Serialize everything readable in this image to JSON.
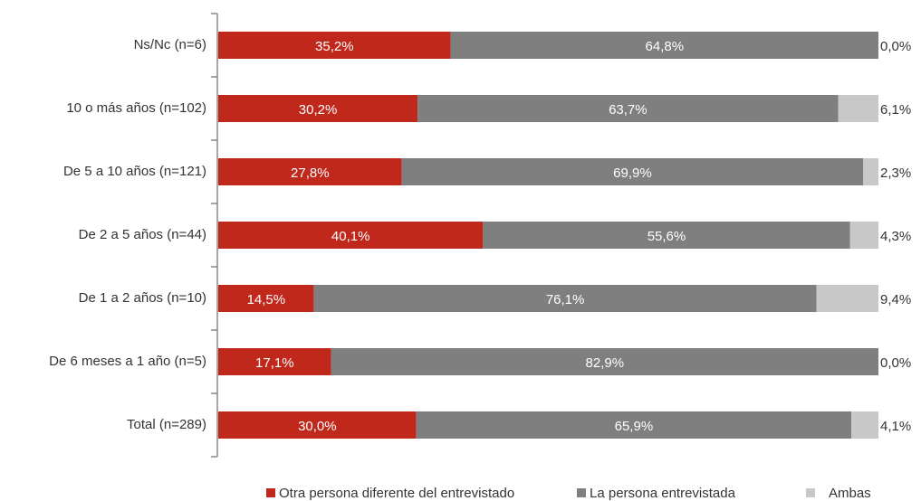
{
  "chart_data": {
    "type": "stacked-bar-horizontal",
    "categories": [
      "Ns/Nc (n=6)",
      "10 o más años (n=102)",
      "De 5 a 10 años (n=121)",
      "De 2 a 5 años (n=44)",
      "De 1 a 2 años (n=10)",
      "De 6 meses a 1 año (n=5)",
      "Total (n=289)"
    ],
    "series": [
      {
        "name": "Otra persona diferente del entrevistado",
        "color": "#c0281b",
        "values": [
          35.2,
          30.2,
          27.8,
          40.1,
          14.5,
          17.1,
          30.0
        ],
        "value_labels": [
          "35,2%",
          "30,2%",
          "27,8%",
          "40,1%",
          "14,5%",
          "17,1%",
          "30,0%"
        ]
      },
      {
        "name": "La persona entrevistada",
        "color": "#7f7f7f",
        "values": [
          64.8,
          63.7,
          69.9,
          55.6,
          76.1,
          82.9,
          65.9
        ],
        "value_labels": [
          "64,8%",
          "63,7%",
          "69,9%",
          "55,6%",
          "76,1%",
          "82,9%",
          "65,9%"
        ]
      },
      {
        "name": "Ambas",
        "color": "#c8c8c8",
        "values": [
          0.0,
          6.1,
          2.3,
          4.3,
          9.4,
          0.0,
          4.1
        ],
        "value_labels": [
          "0,0%",
          "6,1%",
          "2,3%",
          "4,3%",
          "9,4%",
          "0,0%",
          "4,1%"
        ]
      }
    ],
    "xlim": [
      0,
      100
    ]
  }
}
